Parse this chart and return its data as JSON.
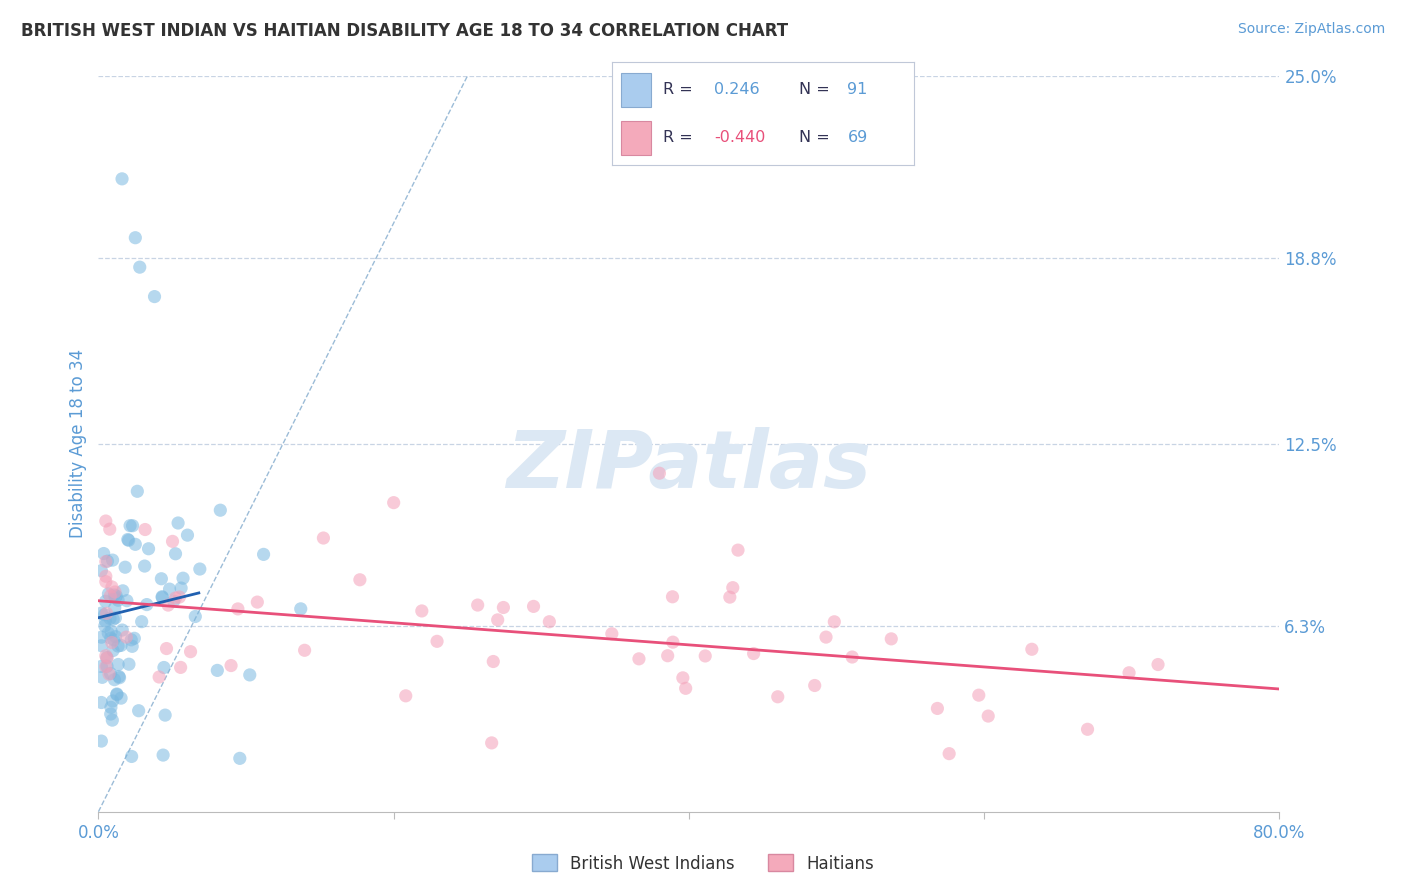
{
  "title": "BRITISH WEST INDIAN VS HAITIAN DISABILITY AGE 18 TO 34 CORRELATION CHART",
  "source_text": "Source: ZipAtlas.com",
  "ylabel": "Disability Age 18 to 34",
  "x_min": 0.0,
  "x_max": 0.8,
  "y_min": 0.0,
  "y_max": 0.25,
  "y_ticks_right": [
    0.063,
    0.125,
    0.188,
    0.25
  ],
  "y_tick_labels_right": [
    "6.3%",
    "12.5%",
    "18.8%",
    "25.0%"
  ],
  "blue_dot_color": "#7ab8e0",
  "pink_dot_color": "#f4a0b8",
  "trend_blue_color": "#2060b0",
  "trend_pink_color": "#e8507a",
  "diag_color": "#8ab0d0",
  "watermark_color": "#dce8f4",
  "font_color_blue": "#5b9bd5",
  "font_color_dark": "#333333",
  "background_color": "#ffffff",
  "grid_color": "#c8d4e4"
}
